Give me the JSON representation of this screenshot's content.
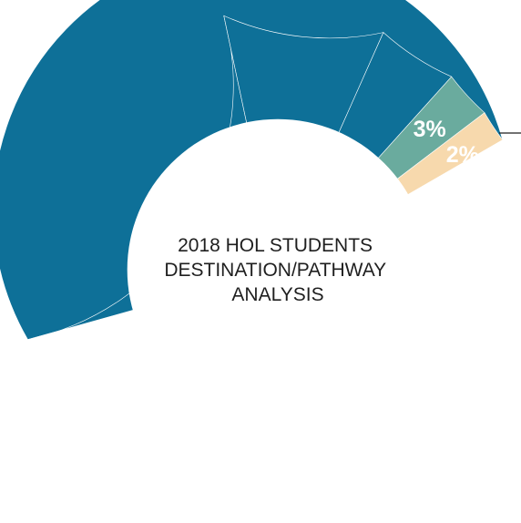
{
  "chart_data": {
    "type": "pie",
    "title_lines": [
      "2018 HOL STUDENTS",
      "DESTINATION/PATHWAY",
      "ANALYSIS"
    ],
    "slices": [
      {
        "label": "",
        "value": 54,
        "color": "#0e7098",
        "value_label": ""
      },
      {
        "label": "",
        "value": 26,
        "color": "#0e7098",
        "value_label": ""
      },
      {
        "label": "",
        "value": 10,
        "color": "#0e7098",
        "value_label": ""
      },
      {
        "label": "",
        "value": 5,
        "color": "#0e7098",
        "value_label": ""
      },
      {
        "label": "",
        "value": 3,
        "color": "#6aab9e",
        "value_label": "3%"
      },
      {
        "label": "",
        "value": 2,
        "color": "#f7d9ad",
        "value_label": "2%"
      }
    ],
    "start_angle_deg": 30,
    "direction": "counterclockwise",
    "hole_ratio": 0.58,
    "separator_color": "#ffffff",
    "leader_line": true
  }
}
